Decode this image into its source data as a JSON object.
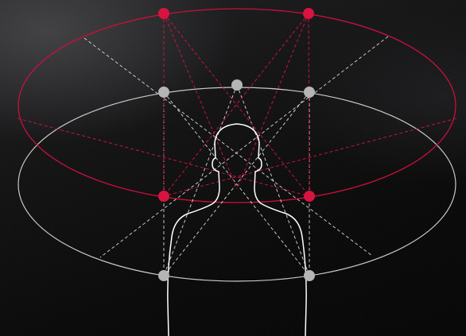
{
  "diagram": {
    "description_icon": "speaker-layout-icon",
    "colors": {
      "background": "#000000",
      "upper_ring": "#c8103a",
      "lower_ring": "#c9c9c9",
      "upper_speaker": "#d7143f",
      "lower_speaker": "#b5b5b5",
      "listener_outline": "#ffffff"
    },
    "upper_layer": {
      "label": "",
      "speaker_count": 4
    },
    "lower_layer": {
      "label": "",
      "speaker_count": 5
    }
  }
}
